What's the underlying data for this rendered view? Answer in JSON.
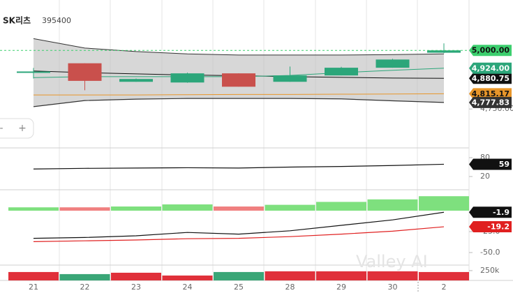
{
  "chart_data": [
    {
      "type": "candlestick",
      "title": "SK리츠",
      "subtitle": "395400",
      "categories": [
        "21",
        "22",
        "23",
        "24",
        "25",
        "28",
        "29",
        "30",
        "2"
      ],
      "open": [
        4910,
        4945,
        4866,
        4863,
        4902,
        4866,
        4893,
        4926,
        4990
      ],
      "high": [
        4925,
        4945,
        4880,
        4905,
        4902,
        4931,
        4930,
        4964,
        5030
      ],
      "low": [
        4880,
        4830,
        4866,
        4862,
        4845,
        4866,
        4893,
        4926,
        4988
      ],
      "close": [
        4910,
        4870,
        4878,
        4902,
        4845,
        4893,
        4926,
        4961,
        5000
      ],
      "close_labels": [
        null,
        null,
        null,
        null,
        null,
        null,
        null,
        null,
        "5,000.00"
      ],
      "up_color": "#2ca67a",
      "down_color": "#c9504c",
      "close_color": "#3ccf6e",
      "band": {
        "color": "#333333",
        "fill": "#bdbdbd",
        "upper": [
          5050,
          5010,
          4995,
          4985,
          4980,
          4980,
          4980,
          4982,
          4985
        ],
        "lower": [
          4760,
          4786,
          4792,
          4795,
          4795,
          4795,
          4793,
          4785,
          4777.83
        ],
        "lower_labels": [
          null,
          null,
          null,
          null,
          null,
          null,
          null,
          null,
          "4,777.83"
        ]
      },
      "series": [
        {
          "color": "#111111",
          "values": [
            4912,
            4905,
            4900,
            4895,
            4892,
            4888,
            4885,
            4882,
            4880.75
          ],
          "value_labels": [
            null,
            null,
            null,
            null,
            null,
            null,
            null,
            null,
            "4,880.75"
          ]
        },
        {
          "color": "#2ca67a",
          "values": [
            4884,
            4888,
            4888,
            4888,
            4888,
            4893,
            4905,
            4915,
            4924
          ],
          "value_labels": [
            null,
            null,
            null,
            null,
            null,
            null,
            null,
            null,
            "4,924.00"
          ]
        },
        {
          "color": "#e8962a",
          "values": [
            4810,
            4810,
            4810,
            4811,
            4812,
            4812,
            4813,
            4814,
            4815.17
          ],
          "value_labels": [
            null,
            null,
            null,
            null,
            null,
            null,
            null,
            null,
            "4,815.17"
          ]
        }
      ],
      "ylim": [
        4590,
        5200
      ],
      "yticks": [
        {
          "value": 4750,
          "label": "4,750.00"
        }
      ]
    },
    {
      "type": "line",
      "series": [
        {
          "color": "#111111",
          "values": [
            44,
            46,
            47,
            48,
            47,
            50,
            52,
            55,
            59
          ]
        }
      ],
      "ylim": [
        -22,
        111
      ],
      "yticks": [
        20,
        80
      ]
    },
    {
      "type": "macd",
      "histogram": {
        "values": [
          4,
          4,
          5,
          7.5,
          5,
          7,
          10.5,
          13.5,
          17.3
        ],
        "colors": [
          "#7ee07e",
          "#f08080",
          "#7ee07e",
          "#7ee07e",
          "#f08080",
          "#7ee07e",
          "#7ee07e",
          "#7ee07e",
          "#7ee07e"
        ]
      },
      "series": [
        {
          "color": "#111111",
          "values": [
            -33,
            -32,
            -30,
            -26,
            -28,
            -24,
            -17.5,
            -11,
            -1.9
          ]
        },
        {
          "color": "#e02020",
          "values": [
            -37,
            -36,
            -35,
            -33.5,
            -33,
            -31,
            -28,
            -24.5,
            -19.2
          ]
        }
      ],
      "ylim": [
        -65,
        25
      ],
      "yticks": [
        {
          "value": -50,
          "label": "-50.0"
        },
        {
          "value": -25,
          "label": "-25.0"
        }
      ]
    },
    {
      "type": "bar",
      "values": [
        214000,
        161000,
        196000,
        125000,
        214000,
        232000,
        232000,
        232000,
        214000
      ],
      "colors": [
        "#e0303a",
        "#3aa677",
        "#e0303a",
        "#e0303a",
        "#3aa677",
        "#e0303a",
        "#e0303a",
        "#e0303a",
        "#e0303a"
      ],
      "ylim": [
        0,
        390000
      ],
      "yticks": [
        {
          "value": 250000,
          "label": "250k"
        }
      ]
    }
  ],
  "zoom_controls": [
    "-",
    "+"
  ],
  "watermark": "Valley AI"
}
